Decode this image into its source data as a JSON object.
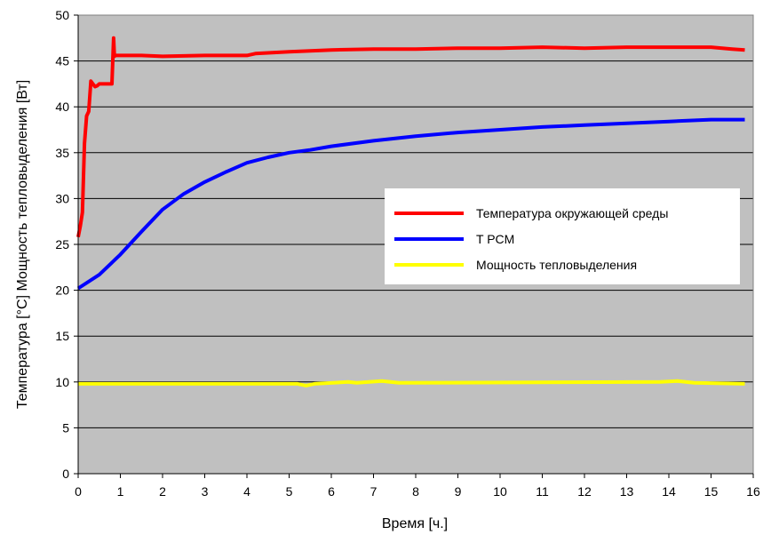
{
  "chart_data": {
    "type": "line",
    "title": "",
    "xlabel": "Время [ч.]",
    "ylabel": "Температура [°C] Мощность тепловыделения [Вт]",
    "xlim": [
      0,
      16
    ],
    "ylim": [
      0,
      50
    ],
    "xticks": [
      "0",
      "1",
      "2",
      "3",
      "4",
      "5",
      "6",
      "7",
      "8",
      "9",
      "10",
      "11",
      "12",
      "13",
      "14",
      "15",
      "16"
    ],
    "yticks": [
      "0",
      "5",
      "10",
      "15",
      "20",
      "25",
      "30",
      "35",
      "40",
      "45",
      "50"
    ],
    "grid": "horizontal",
    "legend_position": "center-right",
    "plot_background": "#c0c0c0",
    "series": [
      {
        "name": "Температура окружающей среды",
        "color": "#ff0000",
        "x": [
          0,
          0.05,
          0.1,
          0.15,
          0.2,
          0.25,
          0.3,
          0.35,
          0.4,
          0.45,
          0.5,
          0.55,
          0.6,
          0.7,
          0.8,
          0.84,
          0.86,
          0.88,
          0.9,
          0.95,
          1,
          1.5,
          2,
          3,
          4,
          4.2,
          5,
          6,
          7,
          8,
          9,
          10,
          11,
          12,
          13,
          14,
          15,
          15.5,
          15.8
        ],
        "y": [
          25.8,
          27,
          28.5,
          36,
          39,
          39.5,
          42.8,
          42.5,
          42.2,
          42.3,
          42.5,
          42.5,
          42.5,
          42.5,
          42.5,
          47.5,
          45.5,
          45.6,
          45.6,
          45.6,
          45.6,
          45.6,
          45.5,
          45.6,
          45.6,
          45.8,
          46,
          46.2,
          46.3,
          46.3,
          46.4,
          46.4,
          46.5,
          46.4,
          46.5,
          46.5,
          46.5,
          46.3,
          46.2
        ]
      },
      {
        "name": "T PCM",
        "color": "#0000ff",
        "x": [
          0,
          0.5,
          1,
          1.5,
          2,
          2.5,
          3,
          3.5,
          4,
          4.5,
          5,
          5.5,
          6,
          7,
          8,
          9,
          10,
          11,
          12,
          13,
          14,
          15,
          15.8
        ],
        "y": [
          20.2,
          21.7,
          23.9,
          26.4,
          28.8,
          30.5,
          31.8,
          32.9,
          33.9,
          34.5,
          35,
          35.3,
          35.7,
          36.3,
          36.8,
          37.2,
          37.5,
          37.8,
          38,
          38.2,
          38.4,
          38.6,
          38.6
        ]
      },
      {
        "name": "Мощность тепловыделения",
        "color": "#ffff00",
        "x": [
          0,
          5.2,
          5.4,
          5.6,
          6.4,
          6.6,
          7.2,
          7.6,
          13.8,
          14.2,
          14.6,
          15.8
        ],
        "y": [
          9.8,
          9.8,
          9.6,
          9.8,
          10,
          9.9,
          10.1,
          9.9,
          10,
          10.1,
          9.9,
          9.8
        ]
      }
    ]
  }
}
